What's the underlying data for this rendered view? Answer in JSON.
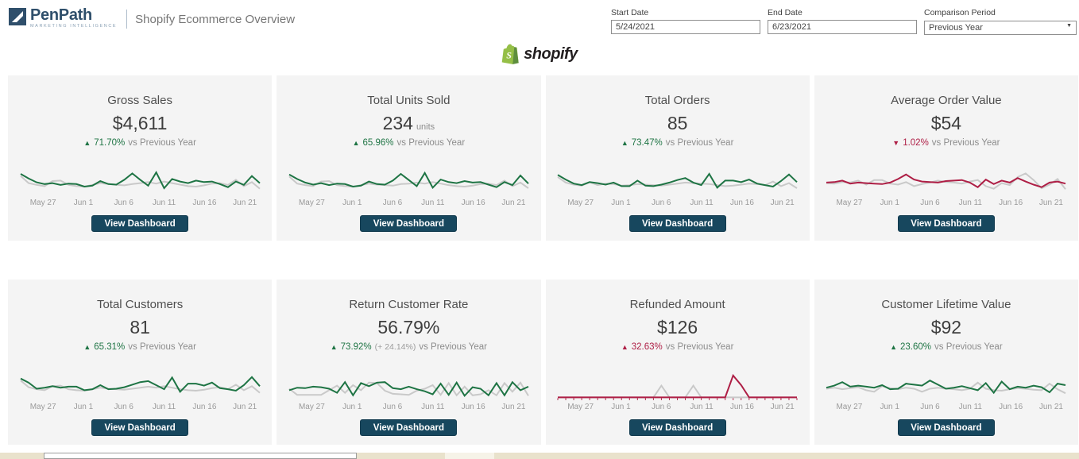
{
  "header": {
    "brand": {
      "name": "PenPath",
      "tagline": "MARKETING INTELLIGENCE"
    },
    "title": "Shopify Ecommerce Overview",
    "controls": {
      "start_date": {
        "label": "Start Date",
        "value": "5/24/2021"
      },
      "end_date": {
        "label": "End Date",
        "value": "6/23/2021"
      },
      "comparison": {
        "label": "Comparison Period",
        "value": "Previous Year"
      }
    }
  },
  "platform_logo": {
    "text": "shopify"
  },
  "button_label": "View Dashboard",
  "x_labels": [
    "May 27",
    "Jun 1",
    "Jun 6",
    "Jun 11",
    "Jun 16",
    "Jun 21"
  ],
  "colors": {
    "green": "#1e7444",
    "red": "#ae1e45",
    "gray_line": "#c9c9c9",
    "navy": "#17475e",
    "card_bg": "#f4f4f4",
    "shopify_green": "#95bf47",
    "shopify_dark_green": "#5e8e3e"
  },
  "cards": [
    {
      "title": "Gross Sales",
      "value": "$4,611",
      "unit": "",
      "delta": {
        "arrow": "▲",
        "pct": "71.70%",
        "extra": "",
        "suffix": "vs Previous Year",
        "color": "green"
      },
      "line_color": "green",
      "spark": {
        "ticks": false,
        "current": [
          78,
          60,
          45,
          38,
          42,
          35,
          40,
          38,
          28,
          32,
          50,
          38,
          36,
          55,
          80,
          55,
          32,
          84,
          22,
          58,
          48,
          42,
          52,
          46,
          48,
          38,
          26,
          48,
          35,
          70,
          42
        ],
        "previous": [
          70,
          42,
          35,
          30,
          50,
          52,
          35,
          30,
          28,
          35,
          42,
          38,
          35,
          33,
          38,
          42,
          46,
          40,
          48,
          42,
          36,
          30,
          28,
          33,
          40,
          42,
          35,
          55,
          30,
          46,
          20
        ]
      }
    },
    {
      "title": "Total Units Sold",
      "value": "234",
      "unit": "units",
      "delta": {
        "arrow": "▲",
        "pct": "65.96%",
        "extra": "",
        "suffix": "vs Previous Year",
        "color": "green"
      },
      "line_color": "green",
      "spark": {
        "ticks": false,
        "current": [
          76,
          58,
          44,
          36,
          42,
          34,
          40,
          38,
          28,
          32,
          48,
          38,
          36,
          52,
          78,
          54,
          30,
          82,
          24,
          56,
          46,
          42,
          50,
          44,
          46,
          36,
          26,
          46,
          34,
          72,
          40
        ],
        "previous": [
          68,
          40,
          34,
          30,
          48,
          50,
          34,
          30,
          28,
          34,
          40,
          36,
          34,
          32,
          38,
          40,
          44,
          40,
          46,
          40,
          34,
          30,
          28,
          32,
          38,
          40,
          34,
          52,
          30,
          44,
          22
        ]
      }
    },
    {
      "title": "Total Orders",
      "value": "85",
      "unit": "",
      "delta": {
        "arrow": "▲",
        "pct": "73.47%",
        "extra": "",
        "suffix": "vs Previous Year",
        "color": "green"
      },
      "line_color": "green",
      "spark": {
        "ticks": false,
        "current": [
          74,
          56,
          40,
          34,
          46,
          42,
          36,
          44,
          30,
          30,
          52,
          32,
          30,
          36,
          44,
          54,
          62,
          44,
          34,
          78,
          24,
          52,
          52,
          46,
          56,
          40,
          34,
          28,
          50,
          76,
          46
        ],
        "previous": [
          66,
          44,
          36,
          32,
          46,
          34,
          40,
          38,
          32,
          34,
          38,
          36,
          34,
          32,
          36,
          40,
          44,
          42,
          40,
          38,
          34,
          30,
          32,
          36,
          40,
          38,
          34,
          48,
          30,
          42,
          22
        ]
      }
    },
    {
      "title": "Average Order Value",
      "value": "$54",
      "unit": "",
      "delta": {
        "arrow": "▼",
        "pct": "1.02%",
        "extra": "",
        "suffix": "vs Previous Year",
        "color": "red"
      },
      "line_color": "red",
      "spark": {
        "ticks": false,
        "current": [
          44,
          46,
          52,
          40,
          44,
          42,
          40,
          38,
          44,
          58,
          76,
          56,
          48,
          46,
          44,
          50,
          52,
          54,
          44,
          26,
          56,
          38,
          52,
          44,
          62,
          48,
          36,
          26,
          44,
          48,
          40
        ],
        "previous": [
          42,
          40,
          46,
          44,
          52,
          36,
          54,
          54,
          40,
          36,
          46,
          30,
          38,
          44,
          52,
          46,
          44,
          40,
          48,
          54,
          30,
          20,
          42,
          34,
          66,
          80,
          54,
          22,
          36,
          58,
          18
        ]
      }
    },
    {
      "title": "Total Customers",
      "value": "81",
      "unit": "",
      "delta": {
        "arrow": "▲",
        "pct": "65.31%",
        "extra": "",
        "suffix": "vs Previous Year",
        "color": "green"
      },
      "line_color": "green",
      "spark": {
        "ticks": false,
        "current": [
          76,
          60,
          36,
          40,
          46,
          40,
          44,
          44,
          30,
          34,
          50,
          34,
          36,
          42,
          52,
          62,
          66,
          50,
          34,
          80,
          24,
          56,
          56,
          48,
          60,
          38,
          34,
          28,
          50,
          82,
          46
        ],
        "previous": [
          68,
          42,
          34,
          30,
          46,
          48,
          34,
          30,
          28,
          34,
          40,
          36,
          34,
          32,
          36,
          40,
          44,
          40,
          46,
          40,
          34,
          30,
          28,
          32,
          38,
          42,
          34,
          52,
          30,
          46,
          20
        ]
      }
    },
    {
      "title": "Return Customer Rate",
      "value": "56.79%",
      "unit": "",
      "delta": {
        "arrow": "▲",
        "pct": "73.92%",
        "extra": "(+ 24.14%)",
        "suffix": "vs Previous Year",
        "color": "green"
      },
      "line_color": "green",
      "spark": {
        "ticks": false,
        "current": [
          30,
          40,
          38,
          44,
          42,
          36,
          20,
          62,
          10,
          58,
          46,
          60,
          62,
          38,
          34,
          44,
          34,
          26,
          14,
          56,
          12,
          60,
          8,
          42,
          36,
          10,
          58,
          10,
          62,
          30,
          44
        ],
        "previous": [
          36,
          12,
          12,
          12,
          12,
          30,
          48,
          20,
          50,
          30,
          60,
          58,
          28,
          16,
          14,
          12,
          28,
          36,
          50,
          12,
          58,
          10,
          44,
          10,
          14,
          30,
          10,
          58,
          24,
          60,
          8
        ]
      }
    },
    {
      "title": "Refunded Amount",
      "value": "$126",
      "unit": "",
      "delta": {
        "arrow": "▲",
        "pct": "32.63%",
        "extra": "",
        "suffix": "vs Previous Year",
        "color": "red"
      },
      "line_color": "red",
      "spark": {
        "ticks": true,
        "current": [
          2,
          2,
          2,
          2,
          2,
          2,
          2,
          2,
          2,
          2,
          2,
          2,
          2,
          2,
          2,
          2,
          2,
          2,
          2,
          2,
          2,
          2,
          88,
          50,
          2,
          2,
          2,
          2,
          2,
          2,
          2
        ],
        "previous": [
          2,
          2,
          2,
          2,
          2,
          2,
          2,
          2,
          2,
          2,
          2,
          2,
          2,
          48,
          2,
          2,
          2,
          48,
          2,
          2,
          2,
          2,
          2,
          2,
          2,
          2,
          2,
          2,
          2,
          2,
          2
        ]
      }
    },
    {
      "title": "Customer Lifetime Value",
      "value": "$92",
      "unit": "",
      "delta": {
        "arrow": "▲",
        "pct": "23.60%",
        "extra": "",
        "suffix": "vs Previous Year",
        "color": "green"
      },
      "line_color": "green",
      "spark": {
        "ticks": false,
        "current": [
          40,
          48,
          62,
          44,
          48,
          44,
          40,
          50,
          34,
          36,
          56,
          52,
          48,
          68,
          52,
          36,
          40,
          46,
          38,
          30,
          58,
          20,
          64,
          34,
          44,
          40,
          48,
          42,
          22,
          56,
          50
        ],
        "previous": [
          36,
          40,
          34,
          38,
          42,
          30,
          24,
          46,
          38,
          34,
          40,
          36,
          24,
          36,
          40,
          36,
          34,
          30,
          36,
          60,
          36,
          30,
          28,
          34,
          38,
          36,
          32,
          30,
          56,
          34,
          18
        ]
      }
    }
  ]
}
